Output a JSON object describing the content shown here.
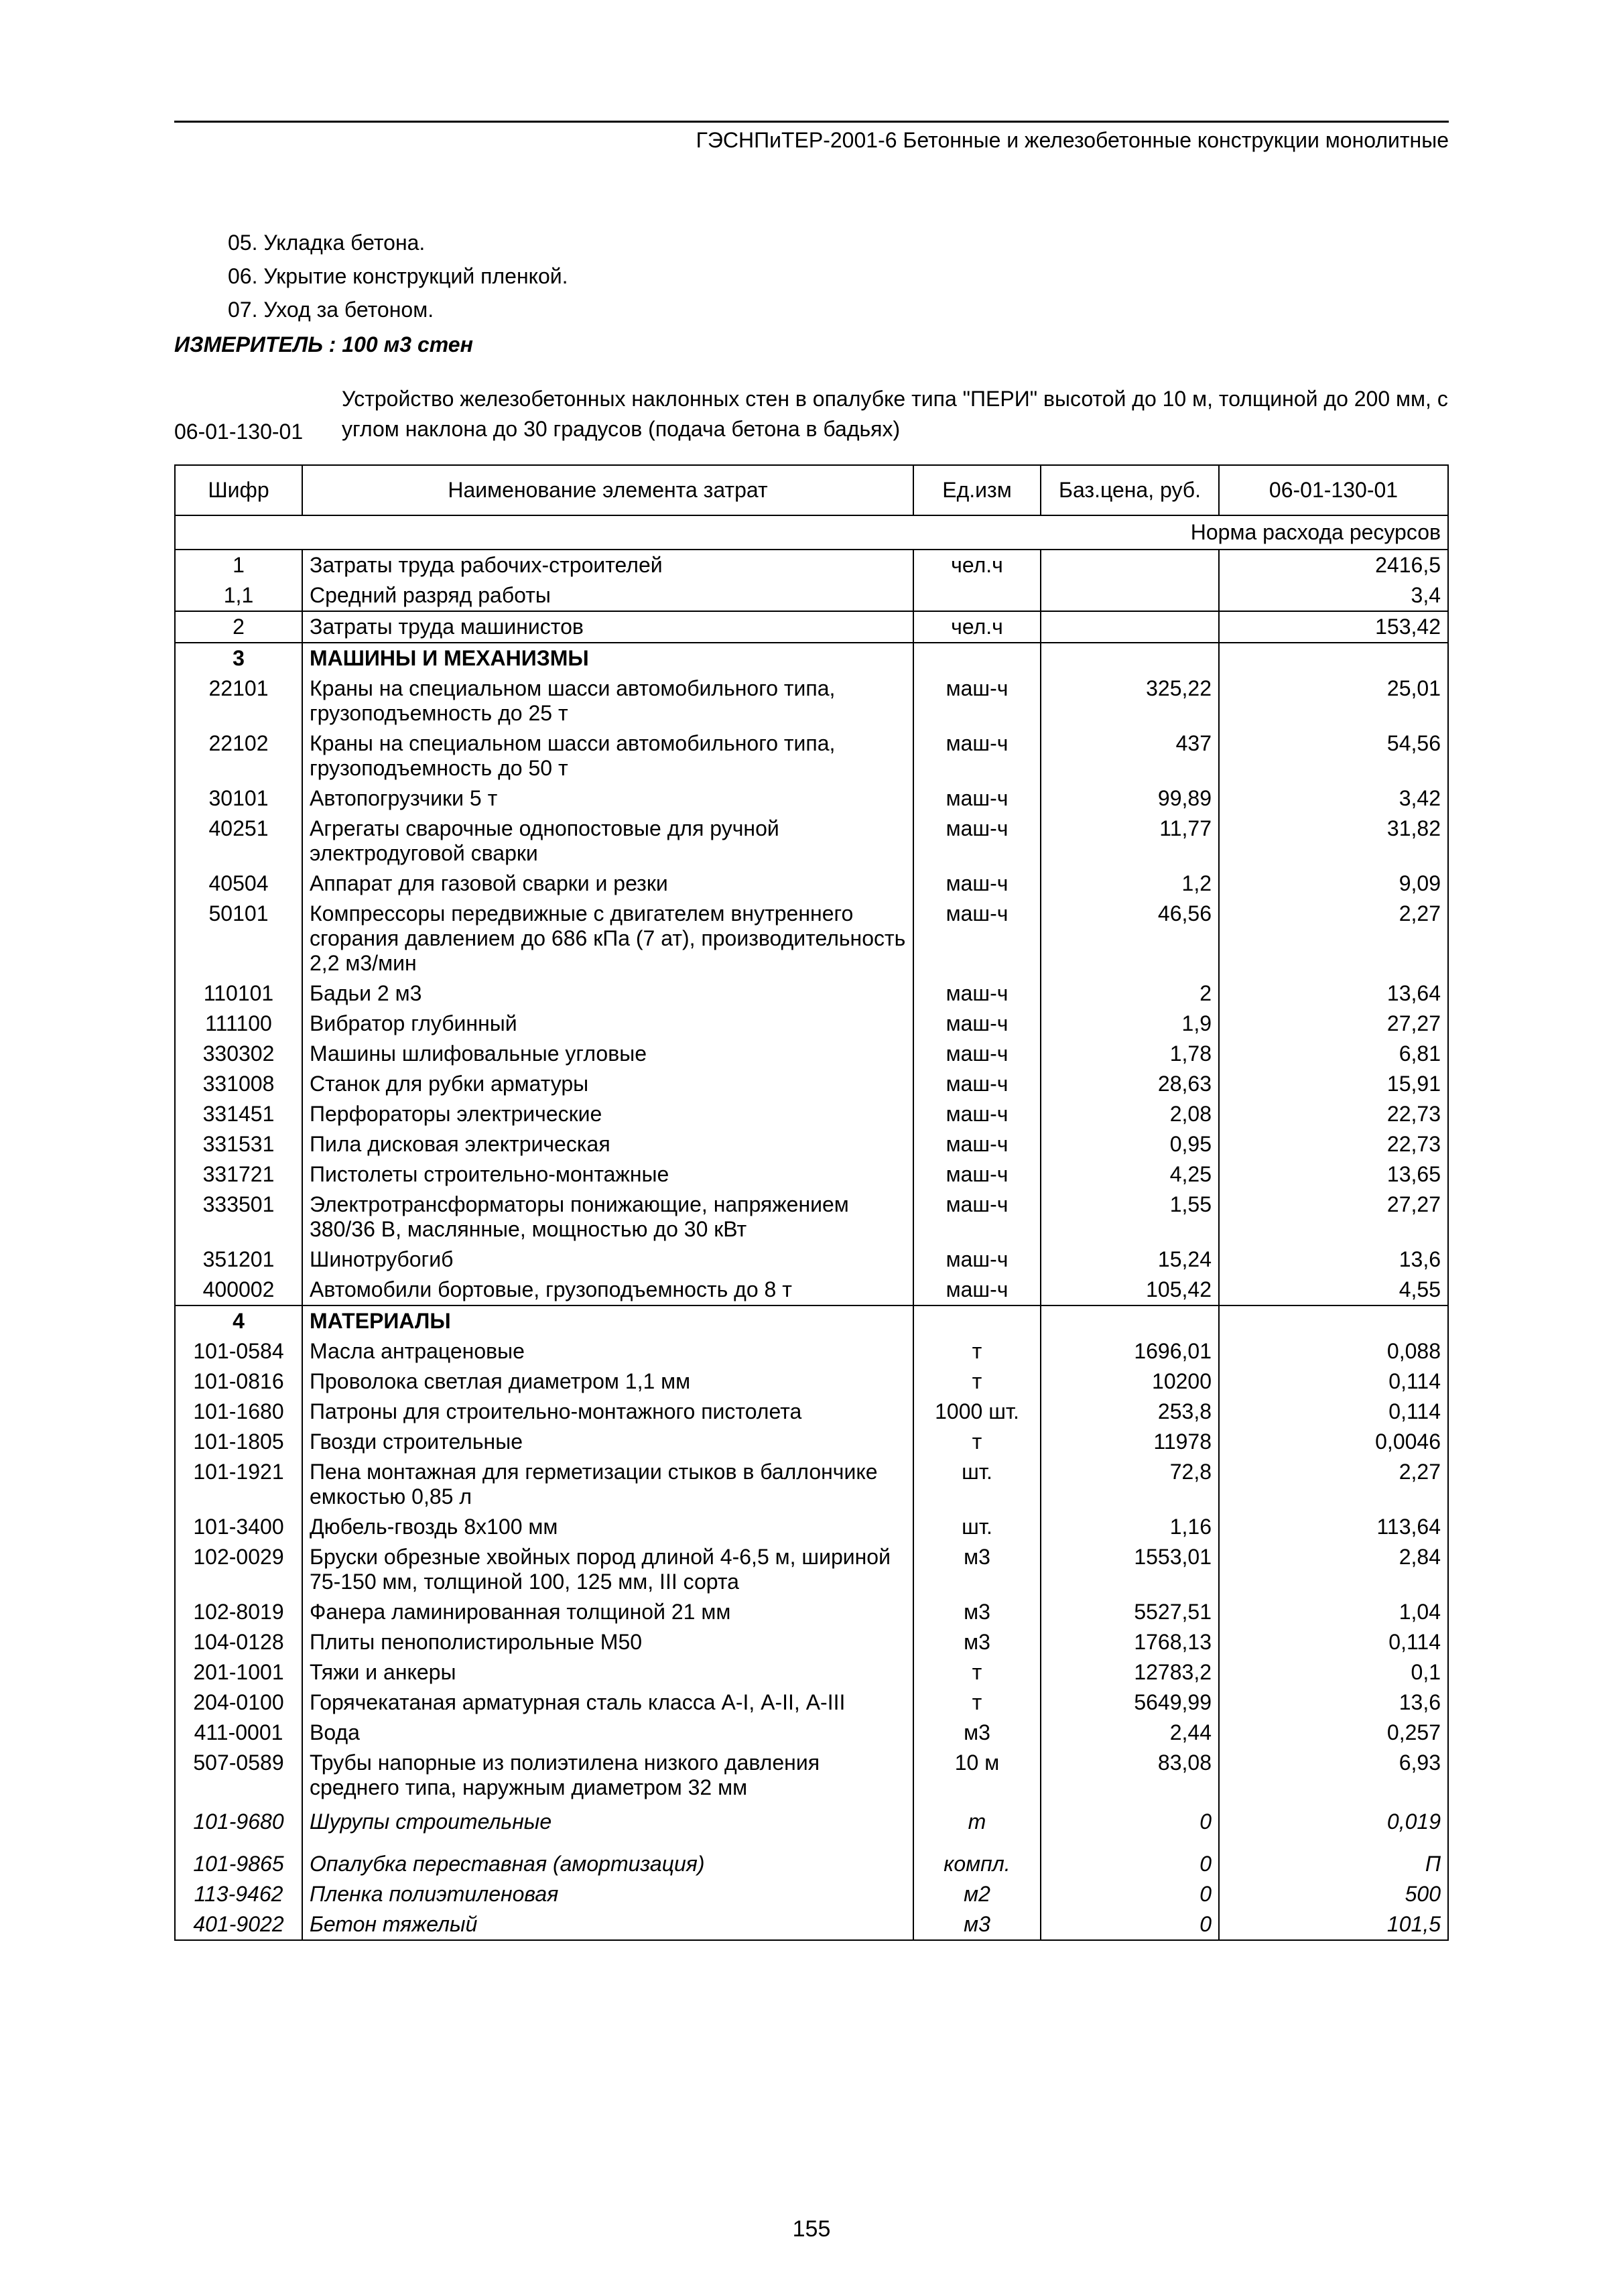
{
  "header": "ГЭСНПиТЕР-2001-6 Бетонные и железобетонные конструкции монолитные",
  "intro_lines": [
    "05. Укладка бетона.",
    "06. Укрытие конструкций пленкой.",
    "07. Уход за бетоном."
  ],
  "measure": "ИЗМЕРИТЕЛЬ : 100 м3 стен",
  "subtitle_code": "06-01-130-01",
  "subtitle_text": "Устройство железобетонных наклонных стен в опалубке типа \"ПЕРИ\" высотой до 10 м, толщиной до 200 мм, с углом наклона до 30 градусов (подача бетона в бадьях)",
  "table": {
    "columns": [
      "Шифр",
      "Наименование элемента затрат",
      "Ед.изм",
      "Баз.цена, руб.",
      "06-01-130-01"
    ],
    "norm_label": "Норма расхода ресурсов",
    "rows": [
      {
        "code": "1",
        "name": "Затраты труда рабочих-строителей",
        "unit": "чел.ч",
        "price": "",
        "norm": "2416,5",
        "style": "nb"
      },
      {
        "code": "1,1",
        "name": "Средний разряд работы",
        "unit": "",
        "price": "",
        "norm": "3,4",
        "style": "nbt"
      },
      {
        "code": "2",
        "name": "Затраты труда машинистов",
        "unit": "чел.ч",
        "price": "",
        "norm": "153,42"
      },
      {
        "code": "3",
        "name": "МАШИНЫ И МЕХАНИЗМЫ",
        "unit": "",
        "price": "",
        "norm": "",
        "style": "subhead nb"
      },
      {
        "code": "22101",
        "name": "Краны на специальном шасси автомобильного типа, грузоподъемность до 25 т",
        "unit": "маш-ч",
        "price": "325,22",
        "norm": "25,01",
        "style": "nbt nb"
      },
      {
        "code": "22102",
        "name": "Краны на специальном шасси автомобильного типа, грузоподъемность до 50 т",
        "unit": "маш-ч",
        "price": "437",
        "norm": "54,56",
        "style": "nbt nb"
      },
      {
        "code": "30101",
        "name": "Автопогрузчики 5 т",
        "unit": "маш-ч",
        "price": "99,89",
        "norm": "3,42",
        "style": "nbt nb"
      },
      {
        "code": "40251",
        "name": "Агрегаты сварочные однопостовые для ручной электродуговой сварки",
        "unit": "маш-ч",
        "price": "11,77",
        "norm": "31,82",
        "style": "nbt nb"
      },
      {
        "code": "40504",
        "name": "Аппарат для газовой сварки и резки",
        "unit": "маш-ч",
        "price": "1,2",
        "norm": "9,09",
        "style": "nbt nb"
      },
      {
        "code": "50101",
        "name": "Компрессоры передвижные с двигателем внутреннего сгорания давлением до 686 кПа (7 ат), производительность 2,2 м3/мин",
        "unit": "маш-ч",
        "price": "46,56",
        "norm": "2,27",
        "style": "nbt nb"
      },
      {
        "code": "110101",
        "name": "Бадьи 2 м3",
        "unit": "маш-ч",
        "price": "2",
        "norm": "13,64",
        "style": "nbt nb"
      },
      {
        "code": "111100",
        "name": "Вибратор глубинный",
        "unit": "маш-ч",
        "price": "1,9",
        "norm": "27,27",
        "style": "nbt nb"
      },
      {
        "code": "330302",
        "name": "Машины шлифовальные угловые",
        "unit": "маш-ч",
        "price": "1,78",
        "norm": "6,81",
        "style": "nbt nb"
      },
      {
        "code": "331008",
        "name": "Станок для рубки арматуры",
        "unit": "маш-ч",
        "price": "28,63",
        "norm": "15,91",
        "style": "nbt nb"
      },
      {
        "code": "331451",
        "name": "Перфораторы электрические",
        "unit": "маш-ч",
        "price": "2,08",
        "norm": "22,73",
        "style": "nbt nb"
      },
      {
        "code": "331531",
        "name": "Пила дисковая электрическая",
        "unit": "маш-ч",
        "price": "0,95",
        "norm": "22,73",
        "style": "nbt nb"
      },
      {
        "code": "331721",
        "name": "Пистолеты строительно-монтажные",
        "unit": "маш-ч",
        "price": "4,25",
        "norm": "13,65",
        "style": "nbt nb"
      },
      {
        "code": "333501",
        "name": "Электротрансформаторы понижающие, напряжением 380/36 В, маслянные, мощностью до 30 кВт",
        "unit": "маш-ч",
        "price": "1,55",
        "norm": "27,27",
        "style": "nbt nb"
      },
      {
        "code": "351201",
        "name": "Шинотрубогиб",
        "unit": "маш-ч",
        "price": "15,24",
        "norm": "13,6",
        "style": "nbt nb"
      },
      {
        "code": "400002",
        "name": "Автомобили бортовые, грузоподъемность до 8 т",
        "unit": "маш-ч",
        "price": "105,42",
        "norm": "4,55",
        "style": "nbt"
      },
      {
        "code": "4",
        "name": "МАТЕРИАЛЫ",
        "unit": "",
        "price": "",
        "norm": "",
        "style": "subhead nb"
      },
      {
        "code": "101-0584",
        "name": "Масла антраценовые",
        "unit": "т",
        "price": "1696,01",
        "norm": "0,088",
        "style": "nbt nb"
      },
      {
        "code": "101-0816",
        "name": "Проволока светлая диаметром 1,1 мм",
        "unit": "т",
        "price": "10200",
        "norm": "0,114",
        "style": "nbt nb"
      },
      {
        "code": "101-1680",
        "name": "Патроны для строительно-монтажного пистолета",
        "unit": "1000 шт.",
        "price": "253,8",
        "norm": "0,114",
        "style": "nbt nb"
      },
      {
        "code": "101-1805",
        "name": "Гвозди строительные",
        "unit": "т",
        "price": "11978",
        "norm": "0,0046",
        "style": "nbt nb"
      },
      {
        "code": "101-1921",
        "name": "Пена монтажная для герметизации стыков в баллончике емкостью 0,85 л",
        "unit": "шт.",
        "price": "72,8",
        "norm": "2,27",
        "style": "nbt nb"
      },
      {
        "code": "101-3400",
        "name": "Дюбель-гвоздь 8х100 мм",
        "unit": "шт.",
        "price": "1,16",
        "norm": "113,64",
        "style": "nbt nb"
      },
      {
        "code": "102-0029",
        "name": "Бруски обрезные хвойных пород длиной 4-6,5 м, шириной 75-150 мм, толщиной 100, 125 мм, III сорта",
        "unit": "м3",
        "price": "1553,01",
        "norm": "2,84",
        "style": "nbt nb"
      },
      {
        "code": "102-8019",
        "name": "Фанера ламинированная толщиной 21 мм",
        "unit": "м3",
        "price": "5527,51",
        "norm": "1,04",
        "style": "nbt nb"
      },
      {
        "code": "104-0128",
        "name": "Плиты пенополистирольные М50",
        "unit": "м3",
        "price": "1768,13",
        "norm": "0,114",
        "style": "nbt nb"
      },
      {
        "code": "201-1001",
        "name": "Тяжи и анкеры",
        "unit": "т",
        "price": "12783,2",
        "norm": "0,1",
        "style": "nbt nb"
      },
      {
        "code": "204-0100",
        "name": "Горячекатаная арматурная сталь класса А-I, А-II, А-III",
        "unit": "т",
        "price": "5649,99",
        "norm": "13,6",
        "style": "nbt nb"
      },
      {
        "code": "411-0001",
        "name": "Вода",
        "unit": "м3",
        "price": "2,44",
        "norm": "0,257",
        "style": "nbt nb"
      },
      {
        "code": "507-0589",
        "name": "Трубы напорные из полиэтилена низкого давления среднего типа, наружным диаметром 32 мм",
        "unit": "10 м",
        "price": "83,08",
        "norm": "6,93",
        "style": "nbt nb"
      },
      {
        "code": "101-9680",
        "name": "Шурупы строительные",
        "unit": "т",
        "price": "0",
        "norm": "0,019",
        "style": "nbt nb italic tall"
      },
      {
        "code": "101-9865",
        "name": "Опалубка переставная (амортизация)",
        "unit": "компл.",
        "price": "0",
        "norm": "П",
        "style": "nbt nb italic"
      },
      {
        "code": "113-9462",
        "name": "Пленка полиэтиленовая",
        "unit": "м2",
        "price": "0",
        "norm": "500",
        "style": "nbt nb italic"
      },
      {
        "code": "401-9022",
        "name": "Бетон тяжелый",
        "unit": "м3",
        "price": "0",
        "norm": "101,5",
        "style": "nbt italic"
      }
    ]
  },
  "page_num": "155"
}
